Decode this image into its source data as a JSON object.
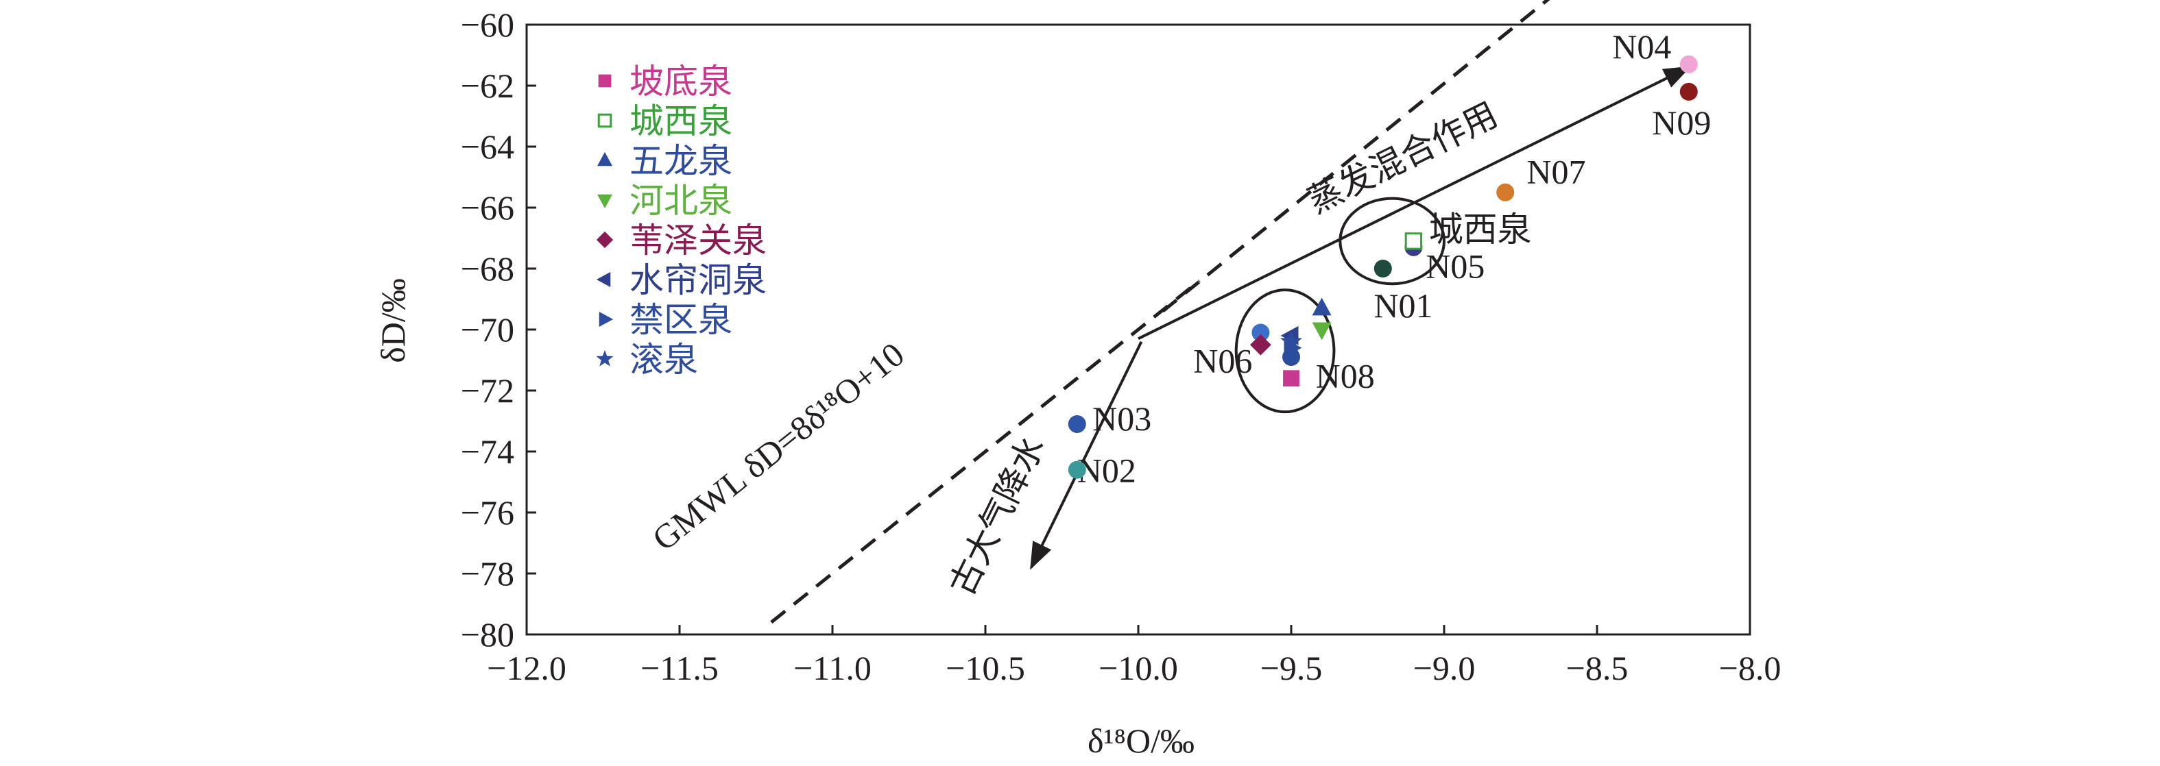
{
  "chart_data": {
    "type": "scatter",
    "xlabel": "δ¹⁸O/‰",
    "ylabel": "δD/‰",
    "xlim": [
      -12.0,
      -8.0
    ],
    "ylim": [
      -80,
      -60
    ],
    "xticks": [
      "−12.0",
      "−11.5",
      "−11.0",
      "−10.5",
      "−10.0",
      "−9.5",
      "−9.0",
      "−8.5",
      "−8.0"
    ],
    "yticks": [
      "−60",
      "−62",
      "−64",
      "−66",
      "−68",
      "−70",
      "−72",
      "−74",
      "−76",
      "−78",
      "−80"
    ],
    "grid": false,
    "legend_position": "top-left",
    "series": [
      {
        "name": "坡底泉",
        "marker": "square",
        "color": "#c8388f",
        "points": [
          {
            "x": -9.5,
            "y": -71.6
          }
        ]
      },
      {
        "name": "城西泉",
        "marker": "square-open",
        "color": "#3aa13a",
        "points": [
          {
            "x": -9.1,
            "y": -67.1
          }
        ]
      },
      {
        "name": "五龙泉",
        "marker": "triangle-up",
        "color": "#2e4c9e",
        "points": [
          {
            "x": -9.4,
            "y": -69.3
          }
        ]
      },
      {
        "name": "河北泉",
        "marker": "triangle-down",
        "color": "#5cb23c",
        "points": [
          {
            "x": -9.4,
            "y": -70.0
          }
        ]
      },
      {
        "name": "苇泽关泉",
        "marker": "diamond",
        "color": "#8a1a52",
        "points": [
          {
            "x": -9.6,
            "y": -70.5
          }
        ]
      },
      {
        "name": "水帘洞泉",
        "marker": "triangle-left",
        "color": "#2e3f8e",
        "points": [
          {
            "x": -9.5,
            "y": -70.2
          }
        ]
      },
      {
        "name": "禁区泉",
        "marker": "triangle-right",
        "color": "#2e4c9e",
        "points": [
          {
            "x": -9.5,
            "y": -70.6
          }
        ]
      },
      {
        "name": "滚泉",
        "marker": "star",
        "color": "#2e4c9e",
        "points": [
          {
            "x": -9.5,
            "y": -70.4
          }
        ]
      }
    ],
    "samples": [
      {
        "label": "N01",
        "x": -9.2,
        "y": -68.0,
        "color": "#1f4a3e"
      },
      {
        "label": "N02",
        "x": -10.2,
        "y": -74.6,
        "color": "#3a9a9a"
      },
      {
        "label": "N03",
        "x": -10.2,
        "y": -73.1,
        "color": "#2f55a8"
      },
      {
        "label": "N04",
        "x": -8.2,
        "y": -61.3,
        "color": "#f0a6d4"
      },
      {
        "label": "N05",
        "x": -9.1,
        "y": -67.3,
        "color": "#3c3a8c"
      },
      {
        "label": "N06",
        "x": -9.6,
        "y": -70.1,
        "color": "#3d6fc8"
      },
      {
        "label": "N07",
        "x": -8.8,
        "y": -65.5,
        "color": "#d47a2a"
      },
      {
        "label": "N08",
        "x": -9.5,
        "y": -70.9,
        "color": "#2e4c9e"
      },
      {
        "label": "N09",
        "x": -8.2,
        "y": -62.2,
        "color": "#8b1a1a"
      }
    ],
    "gmwl": {
      "label": "GMWL δD=8δ¹⁸O+10",
      "x": [
        -11.2,
        -9.8
      ],
      "y": [
        -79.6,
        -68.4
      ]
    },
    "arrows": [
      {
        "label": "蒸发混合作用",
        "from": {
          "x": -10.0,
          "y": -70.3
        },
        "to": {
          "x": -8.2,
          "y": -61.4
        }
      },
      {
        "label": "古大气降水",
        "from": {
          "x": -9.99,
          "y": -70.4
        },
        "to": {
          "x": -10.35,
          "y": -77.8
        }
      }
    ],
    "annotations": [
      {
        "text": "城西泉",
        "x": -9.05,
        "y": -67.1
      },
      {
        "text": "N04",
        "x": -8.45,
        "y": -61.1
      },
      {
        "text": "N09",
        "x": -8.32,
        "y": -63.6
      },
      {
        "text": "N07",
        "x": -8.73,
        "y": -65.2
      },
      {
        "text": "N05",
        "x": -9.06,
        "y": -68.3
      },
      {
        "text": "N01",
        "x": -9.23,
        "y": -69.6
      },
      {
        "text": "N06",
        "x": -9.82,
        "y": -71.4
      },
      {
        "text": "N08",
        "x": -9.42,
        "y": -71.9
      },
      {
        "text": "N03",
        "x": -10.15,
        "y": -73.3
      },
      {
        "text": "N02",
        "x": -10.2,
        "y": -75.0
      }
    ],
    "ellipses": [
      {
        "name": "ellipse-upper",
        "cx": -9.17,
        "cy": -67.1,
        "rx": 0.17,
        "ry": 1.4
      },
      {
        "name": "ellipse-lower",
        "cx": -9.52,
        "cy": -70.7,
        "rx": 0.16,
        "ry": 2.0
      }
    ]
  }
}
